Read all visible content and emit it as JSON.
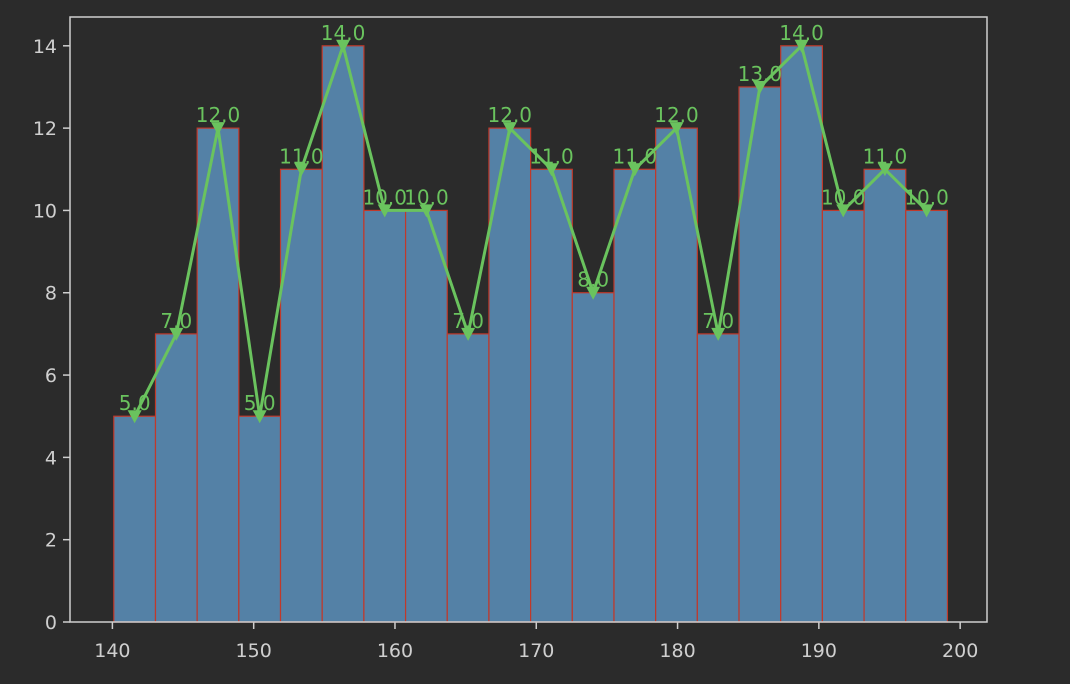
{
  "chart_data": {
    "type": "histogram",
    "bins": [
      140.1,
      143.05,
      146.0,
      148.95,
      151.9,
      154.85,
      157.8,
      160.75,
      163.7,
      166.65,
      169.6,
      172.55,
      175.5,
      178.45,
      181.4,
      184.35,
      187.3,
      190.25,
      193.2,
      196.15,
      199.1
    ],
    "values": [
      5,
      7,
      12,
      5,
      11,
      14,
      10,
      10,
      7,
      12,
      11,
      8,
      11,
      12,
      7,
      13,
      14,
      10,
      11,
      10
    ],
    "value_labels": [
      "5.0",
      "7.0",
      "12.0",
      "5.0",
      "11.0",
      "14.0",
      "10.0",
      "10.0",
      "7.0",
      "12.0",
      "11.0",
      "8.0",
      "11.0",
      "12.0",
      "7.0",
      "13.0",
      "14.0",
      "10.0",
      "11.0",
      "10.0"
    ],
    "color": "#5481a6",
    "edge_color": "#c0392b",
    "line_color": "#6ac35e",
    "xlim": [
      137.0,
      201.9
    ],
    "ylim": [
      0,
      14.7
    ],
    "xticks": [
      140,
      150,
      160,
      170,
      180,
      190,
      200
    ],
    "yticks": [
      0,
      2,
      4,
      6,
      8,
      10,
      12,
      14
    ]
  }
}
